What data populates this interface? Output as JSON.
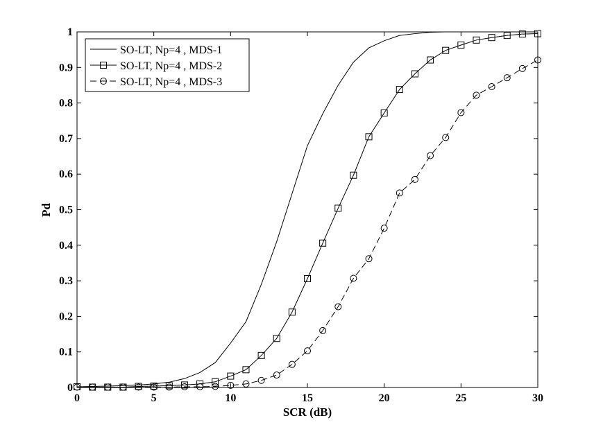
{
  "chart_data": {
    "type": "line",
    "title": "",
    "xlabel": "SCR (dB)",
    "ylabel": "Pd",
    "xlim": [
      0,
      30
    ],
    "ylim": [
      0,
      1
    ],
    "xticks": [
      0,
      5,
      10,
      15,
      20,
      25,
      30
    ],
    "yticks": [
      0,
      0.1,
      0.2,
      0.3,
      0.4,
      0.5,
      0.6,
      0.7,
      0.8,
      0.9,
      1
    ],
    "xtick_labels": [
      "0",
      "5",
      "10",
      "15",
      "20",
      "25",
      "30"
    ],
    "ytick_labels": [
      "0",
      "0.1",
      "0.2",
      "0.3",
      "0.4",
      "0.5",
      "0.6",
      "0.7",
      "0.8",
      "0.9",
      "1"
    ],
    "grid": false,
    "legend_position": "top-left",
    "series": [
      {
        "name": "SO-LT, Np=4 , MDS-1",
        "line": "solid",
        "marker": "none",
        "x": [
          0,
          1,
          2,
          3,
          4,
          5,
          6,
          7,
          8,
          9,
          10,
          11,
          12,
          13,
          14,
          15,
          16,
          17,
          18,
          19,
          20,
          21,
          22,
          23,
          24
        ],
        "y": [
          0.002,
          0.003,
          0.004,
          0.005,
          0.007,
          0.01,
          0.015,
          0.025,
          0.042,
          0.07,
          0.125,
          0.185,
          0.29,
          0.41,
          0.545,
          0.68,
          0.77,
          0.85,
          0.915,
          0.955,
          0.975,
          0.99,
          0.995,
          0.999,
          1.0
        ]
      },
      {
        "name": "SO-LT, Np=4 , MDS-2",
        "line": "solid",
        "marker": "square",
        "x": [
          0,
          1,
          2,
          3,
          4,
          5,
          6,
          7,
          8,
          9,
          10,
          11,
          12,
          13,
          14,
          15,
          16,
          17,
          18,
          19,
          20,
          21,
          22,
          23,
          24,
          25,
          26,
          27,
          28,
          29,
          30
        ],
        "y": [
          0.002,
          0.001,
          0.001,
          0.001,
          0.003,
          0.004,
          0.005,
          0.007,
          0.01,
          0.016,
          0.032,
          0.05,
          0.09,
          0.138,
          0.212,
          0.306,
          0.406,
          0.504,
          0.597,
          0.705,
          0.772,
          0.838,
          0.882,
          0.921,
          0.948,
          0.963,
          0.977,
          0.984,
          0.99,
          0.994,
          0.995
        ]
      },
      {
        "name": "SO-LT, Np=4 , MDS-3",
        "line": "dashed",
        "marker": "circle",
        "x": [
          0,
          1,
          2,
          3,
          4,
          5,
          6,
          7,
          8,
          9,
          10,
          11,
          12,
          13,
          14,
          15,
          16,
          17,
          18,
          19,
          20,
          21,
          22,
          23,
          24,
          25,
          26,
          27,
          28,
          29,
          30
        ],
        "y": [
          0.001,
          0.001,
          0.001,
          0.001,
          0.001,
          0.001,
          0.001,
          0.002,
          0.002,
          0.003,
          0.006,
          0.01,
          0.02,
          0.035,
          0.065,
          0.103,
          0.16,
          0.227,
          0.307,
          0.362,
          0.448,
          0.547,
          0.585,
          0.652,
          0.703,
          0.773,
          0.822,
          0.846,
          0.871,
          0.897,
          0.921
        ]
      }
    ]
  }
}
